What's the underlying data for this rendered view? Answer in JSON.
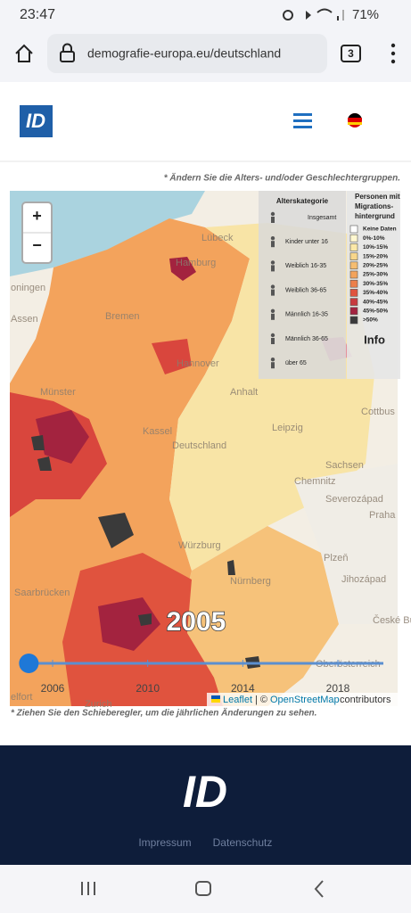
{
  "status_bar": {
    "time": "23:47",
    "battery": "71%"
  },
  "browser": {
    "url": "demografie-europa.eu/deutschland",
    "tabs": "3"
  },
  "page": {
    "note_top": "* Ändern Sie die Alters- und/oder Geschlechtergruppen.",
    "note_bottom": "* Ziehen Sie den Schieberegler, um die jährlichen Änderungen zu sehen.",
    "map": {
      "zoom_in": "+",
      "zoom_out": "−",
      "places": [
        "Hamburg",
        "Bremen",
        "Hannover",
        "Deutschland",
        "Leipzig",
        "Sachsen",
        "Chemnitz",
        "Cottbus",
        "Praha",
        "Plzeň",
        "Severozápad",
        "Jihozápad",
        "České Budějovice",
        "Nürnberg",
        "Würzburg",
        "Kassel",
        "Münster",
        "Assen",
        "oningen",
        "Saarbrücken",
        "Lübeck",
        "Oberösterreich",
        "Zurich",
        "Anhalt",
        "elfort"
      ],
      "age_legend": {
        "title": "Alterskategorie",
        "items": [
          "Insgesamt",
          "Kinder unter 16",
          "Weiblich 16-35",
          "Weiblich 36-65",
          "Männlich 16-35",
          "Männlich 36-65",
          "über 65"
        ]
      },
      "share_legend": {
        "title": "Personen mit Migrations-hintergrund",
        "items": [
          {
            "label": "Keine Daten",
            "color": "#ffffff"
          },
          {
            "label": "0%-10%",
            "color": "#fff7d0"
          },
          {
            "label": "10%-15%",
            "color": "#fbe8a8"
          },
          {
            "label": "15%-20%",
            "color": "#f8d68a"
          },
          {
            "label": "20%-25%",
            "color": "#f6bd70"
          },
          {
            "label": "25%-30%",
            "color": "#f3a35c"
          },
          {
            "label": "30%-35%",
            "color": "#ec7f4a"
          },
          {
            "label": "35%-40%",
            "color": "#e0533e"
          },
          {
            "label": "40%-45%",
            "color": "#c83a3e"
          },
          {
            "label": "45%-50%",
            "color": "#a3233f"
          },
          {
            "label": ">50%",
            "color": "#3a3a3a"
          }
        ],
        "info": "Info"
      },
      "slider": {
        "value": 2005,
        "ticks": [
          2006,
          2010,
          2014,
          2018
        ]
      },
      "attribution": {
        "leaflet": "Leaflet",
        "separator": "| ©",
        "osm": "OpenStreetMap",
        "rest": "contributors"
      }
    }
  },
  "footer": {
    "links": [
      "Impressum",
      "Datenschutz"
    ]
  }
}
